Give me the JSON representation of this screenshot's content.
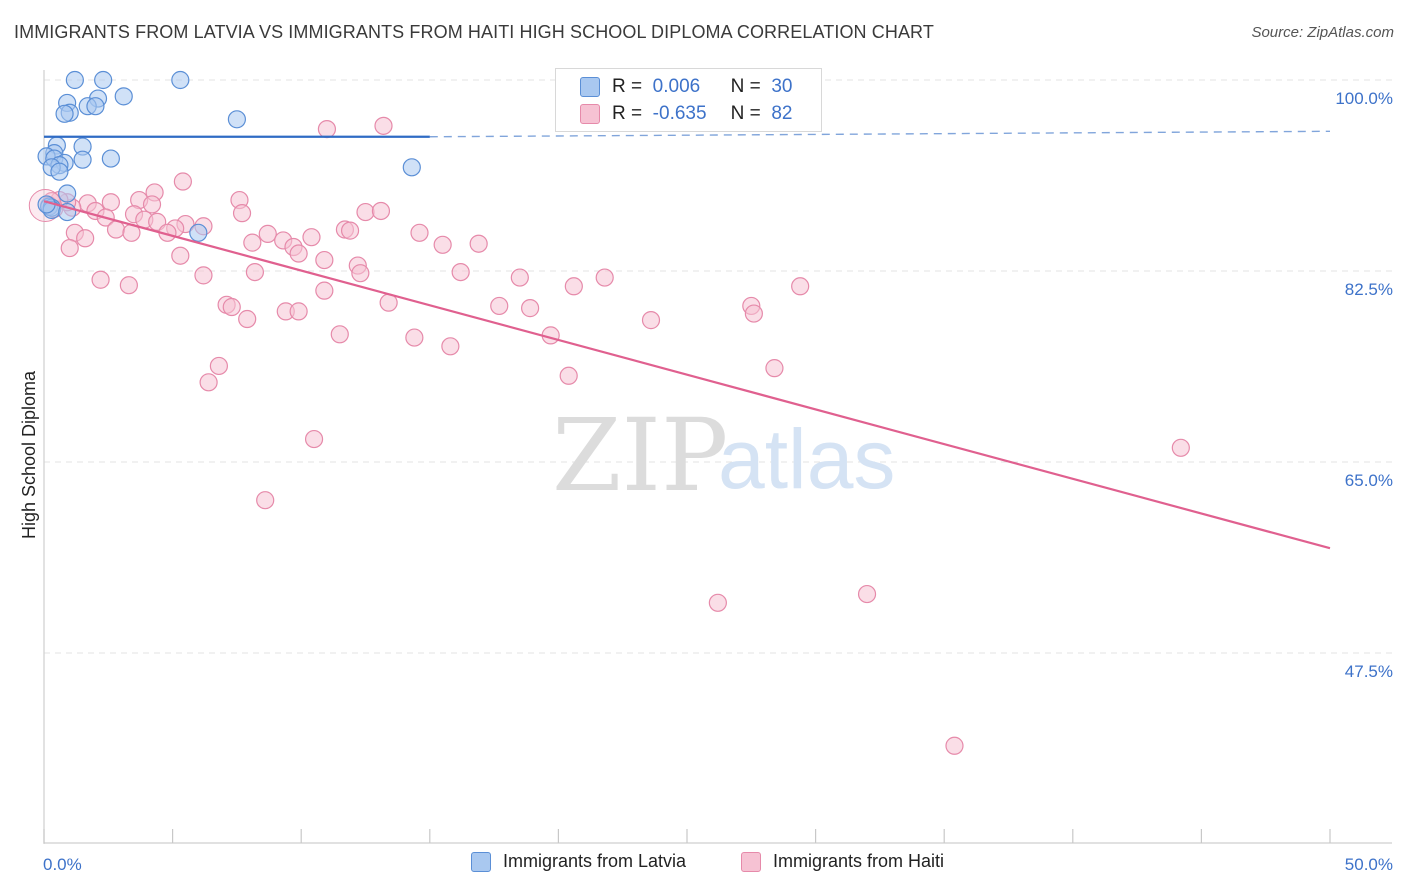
{
  "header": {
    "title": "IMMIGRANTS FROM LATVIA VS IMMIGRANTS FROM HAITI HIGH SCHOOL DIPLOMA CORRELATION CHART",
    "source": "Source: ZipAtlas.com"
  },
  "watermark": {
    "zip": "ZIP",
    "atlas": "atlas"
  },
  "legend_top": {
    "rows": [
      {
        "r_label": "R =",
        "r_value": "0.006",
        "n_label": "N =",
        "n_value": "30"
      },
      {
        "r_label": "R =",
        "r_value": "-0.635",
        "n_label": "N =",
        "n_value": "82"
      }
    ]
  },
  "legend_bottom": {
    "items": [
      "Immigrants from Latvia",
      "Immigrants from Haiti"
    ]
  },
  "colors": {
    "latvia_fill": "#a9c8f0",
    "latvia_stroke": "#5b8fd6",
    "latvia_line": "#2f6bc4",
    "haiti_fill": "#f6c2d3",
    "haiti_stroke": "#e68aaa",
    "haiti_line": "#e0608f",
    "tick_label": "#3d72c9",
    "grid": "#e3e3e3"
  },
  "chart_data": {
    "type": "scatter",
    "title": "IMMIGRANTS FROM LATVIA VS IMMIGRANTS FROM HAITI HIGH SCHOOL DIPLOMA CORRELATION CHART",
    "xlabel": "",
    "ylabel": "High School Diploma",
    "xlim": [
      0,
      50
    ],
    "ylim": [
      31,
      101.5
    ],
    "x_tick_labels": [
      {
        "value": 0,
        "label": "0.0%"
      },
      {
        "value": 50,
        "label": "50.0%"
      }
    ],
    "y_tick_labels": [
      {
        "value": 100,
        "label": "100.0%"
      },
      {
        "value": 82.5,
        "label": "82.5%"
      },
      {
        "value": 65,
        "label": "65.0%"
      },
      {
        "value": 47.5,
        "label": "47.5%"
      }
    ],
    "x_minor_ticks": [
      0,
      5,
      10,
      15,
      20,
      25,
      30,
      35,
      40,
      45,
      50
    ],
    "series": [
      {
        "name": "Immigrants from Latvia",
        "R": 0.006,
        "N": 30,
        "points": [
          [
            1.2,
            100.0
          ],
          [
            2.3,
            100.0
          ],
          [
            5.3,
            100.0
          ],
          [
            3.1,
            98.5
          ],
          [
            2.1,
            98.3
          ],
          [
            0.9,
            97.9
          ],
          [
            1.7,
            97.6
          ],
          [
            2.0,
            97.6
          ],
          [
            1.0,
            97.0
          ],
          [
            0.8,
            96.9
          ],
          [
            7.5,
            96.4
          ],
          [
            0.5,
            94.0
          ],
          [
            1.5,
            93.9
          ],
          [
            0.4,
            93.3
          ],
          [
            0.1,
            93.0
          ],
          [
            0.4,
            92.8
          ],
          [
            2.6,
            92.8
          ],
          [
            1.5,
            92.7
          ],
          [
            0.8,
            92.4
          ],
          [
            0.6,
            92.2
          ],
          [
            0.3,
            92.0
          ],
          [
            14.3,
            92.0
          ],
          [
            0.6,
            91.6
          ],
          [
            0.9,
            89.6
          ],
          [
            0.2,
            88.4
          ],
          [
            0.3,
            88.3
          ],
          [
            0.3,
            88.1
          ],
          [
            0.9,
            87.9
          ],
          [
            6.0,
            86.0
          ],
          [
            0.1,
            88.6
          ]
        ],
        "trend": {
          "x0": 0,
          "y0": 94.8,
          "x1": 15,
          "y1": 94.8,
          "dashed_x1": 50,
          "dashed_y1": 95.3
        }
      },
      {
        "name": "Immigrants from Haiti",
        "R": -0.635,
        "N": 82,
        "points": [
          [
            13.2,
            95.8
          ],
          [
            11.0,
            95.5
          ],
          [
            5.4,
            90.7
          ],
          [
            4.3,
            89.7
          ],
          [
            7.6,
            89.0
          ],
          [
            3.7,
            89.0
          ],
          [
            2.6,
            88.8
          ],
          [
            1.7,
            88.7
          ],
          [
            4.2,
            88.6
          ],
          [
            1.1,
            88.3
          ],
          [
            0.9,
            88.8
          ],
          [
            0.6,
            89.0
          ],
          [
            0.3,
            88.9
          ],
          [
            0.2,
            88.5
          ],
          [
            0.4,
            88.2
          ],
          [
            2.0,
            88.0
          ],
          [
            7.7,
            87.8
          ],
          [
            12.5,
            87.9
          ],
          [
            13.1,
            88.0
          ],
          [
            3.5,
            87.7
          ],
          [
            2.4,
            87.4
          ],
          [
            3.9,
            87.2
          ],
          [
            4.4,
            87.0
          ],
          [
            5.5,
            86.8
          ],
          [
            6.2,
            86.6
          ],
          [
            5.1,
            86.4
          ],
          [
            2.8,
            86.3
          ],
          [
            3.4,
            86.0
          ],
          [
            1.2,
            86.0
          ],
          [
            4.8,
            86.0
          ],
          [
            11.7,
            86.3
          ],
          [
            11.9,
            86.2
          ],
          [
            14.6,
            86.0
          ],
          [
            8.7,
            85.9
          ],
          [
            10.4,
            85.6
          ],
          [
            9.3,
            85.3
          ],
          [
            8.1,
            85.1
          ],
          [
            1.6,
            85.5
          ],
          [
            15.5,
            84.9
          ],
          [
            16.9,
            85.0
          ],
          [
            9.7,
            84.7
          ],
          [
            1.0,
            84.6
          ],
          [
            9.9,
            84.1
          ],
          [
            5.3,
            83.9
          ],
          [
            10.9,
            83.5
          ],
          [
            12.2,
            83.0
          ],
          [
            12.3,
            82.3
          ],
          [
            8.2,
            82.4
          ],
          [
            6.2,
            82.1
          ],
          [
            16.2,
            82.4
          ],
          [
            2.2,
            81.7
          ],
          [
            18.5,
            81.9
          ],
          [
            21.8,
            81.9
          ],
          [
            3.3,
            81.2
          ],
          [
            20.6,
            81.1
          ],
          [
            29.4,
            81.1
          ],
          [
            10.9,
            80.7
          ],
          [
            7.1,
            79.4
          ],
          [
            13.4,
            79.6
          ],
          [
            7.3,
            79.2
          ],
          [
            17.7,
            79.3
          ],
          [
            18.9,
            79.1
          ],
          [
            27.5,
            79.3
          ],
          [
            9.4,
            78.8
          ],
          [
            9.9,
            78.8
          ],
          [
            7.9,
            78.1
          ],
          [
            23.6,
            78.0
          ],
          [
            27.6,
            78.6
          ],
          [
            11.5,
            76.7
          ],
          [
            14.4,
            76.4
          ],
          [
            19.7,
            76.6
          ],
          [
            15.8,
            75.6
          ],
          [
            6.8,
            73.8
          ],
          [
            28.4,
            73.6
          ],
          [
            20.4,
            72.9
          ],
          [
            6.4,
            72.3
          ],
          [
            10.5,
            67.1
          ],
          [
            44.2,
            66.3
          ],
          [
            8.6,
            61.5
          ],
          [
            32.0,
            52.9
          ],
          [
            26.2,
            52.1
          ],
          [
            35.4,
            39.0
          ]
        ],
        "trend": {
          "x0": 0,
          "y0": 88.9,
          "x1": 50,
          "y1": 57.1
        }
      }
    ]
  }
}
